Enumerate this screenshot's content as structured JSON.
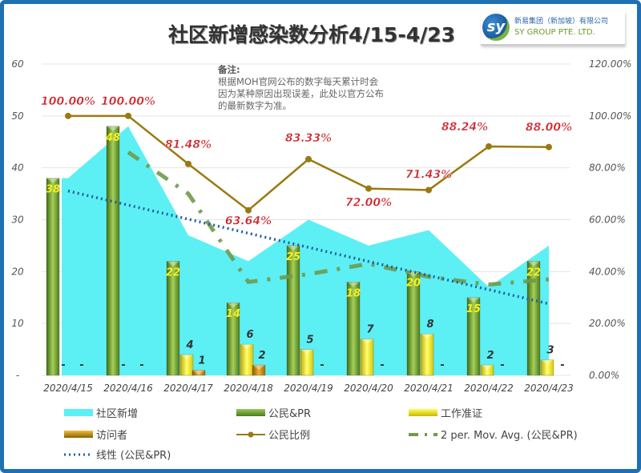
{
  "title": "社区新增感染数分析4/15-4/23",
  "logo": {
    "mark": "sy",
    "name_cn": "新易集团（新加坡）有限公司",
    "name_en": "SY GROUP PTE. LTD."
  },
  "note": {
    "heading": "备注:",
    "lines": [
      "根据MOH官网公布的数字每天累计时会",
      "因为某种原因出现误差，此处以官方公布",
      "的最新数字为准。"
    ]
  },
  "chart_data": {
    "type": "bar",
    "title": "社区新增感染数分析4/15-4/23",
    "categories": [
      "2020/4/15",
      "2020/4/16",
      "2020/4/17",
      "2020/4/18",
      "2020/4/19",
      "2020/4/20",
      "2020/4/21",
      "2020/4/22",
      "2020/4/23"
    ],
    "series": [
      {
        "name": "社区新增",
        "kind": "area",
        "values": [
          38,
          48,
          27,
          22,
          30,
          25,
          28,
          17,
          25
        ],
        "color": "#5cf0f5"
      },
      {
        "name": "公民&PR",
        "kind": "bar",
        "values": [
          38,
          48,
          22,
          14,
          25,
          18,
          20,
          15,
          22
        ],
        "color": "#6a9a2a"
      },
      {
        "name": "工作准证",
        "kind": "bar",
        "values": [
          0,
          0,
          4,
          6,
          5,
          7,
          8,
          2,
          3
        ],
        "color": "#f2e21a"
      },
      {
        "name": "访问者",
        "kind": "bar",
        "values": [
          0,
          0,
          1,
          2,
          0,
          0,
          0,
          0,
          0
        ],
        "color": "#d49a10"
      },
      {
        "name": "公民比例",
        "kind": "line",
        "axis": "right",
        "values": [
          100.0,
          100.0,
          81.48,
          63.64,
          83.33,
          72.0,
          71.43,
          88.24,
          88.0
        ],
        "labels": [
          "100.00%",
          "100.00%",
          "81.48%",
          "63.64%",
          "83.33%",
          "72.00%",
          "71.43%",
          "88.24%",
          "88.00%"
        ],
        "color": "#9a7a10"
      },
      {
        "name": "2 per. Mov. Avg. (公民&PR)",
        "kind": "moving-average",
        "color": "#6f9a4a"
      },
      {
        "name": "线性 (公民&PR)",
        "kind": "trendline",
        "color": "#1f5f9f"
      }
    ],
    "y_left": {
      "ylim": [
        0,
        60
      ],
      "ticks": [
        "-",
        "10",
        "20",
        "30",
        "40",
        "50",
        "60"
      ]
    },
    "y_right": {
      "ylim": [
        0,
        120
      ],
      "ticks": [
        "0.00%",
        "20.00%",
        "40.00%",
        "60.00%",
        "80.00%",
        "100.00%",
        "120.00%"
      ]
    },
    "zero_label": "-",
    "legend_placement": "bottom",
    "grid": true
  }
}
